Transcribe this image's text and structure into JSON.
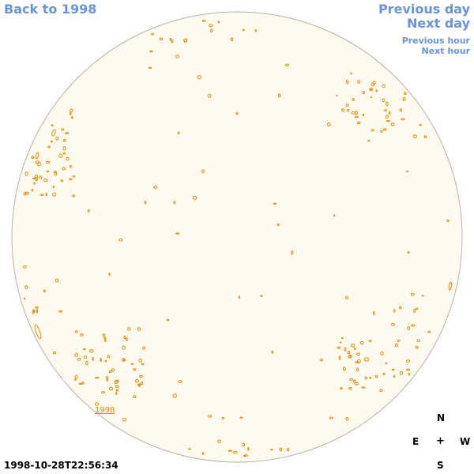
{
  "navigation": {
    "back_label": "Back to 1998",
    "previous_day_label": "Previous day",
    "next_day_label": "Next day",
    "previous_hour_label": "Previous hour",
    "next_hour_label": "Next hour"
  },
  "disk": {
    "year_label": "1998",
    "colors": {
      "disk_fill": "#fffaef",
      "disk_border": "#b8b0a6",
      "contour": "#e08a00",
      "link": "#6a93dd"
    }
  },
  "compass": {
    "north": "N",
    "east": "E",
    "center": "+",
    "west": "W",
    "south": "S"
  },
  "timestamp": "1998-10-28T22:56:34"
}
